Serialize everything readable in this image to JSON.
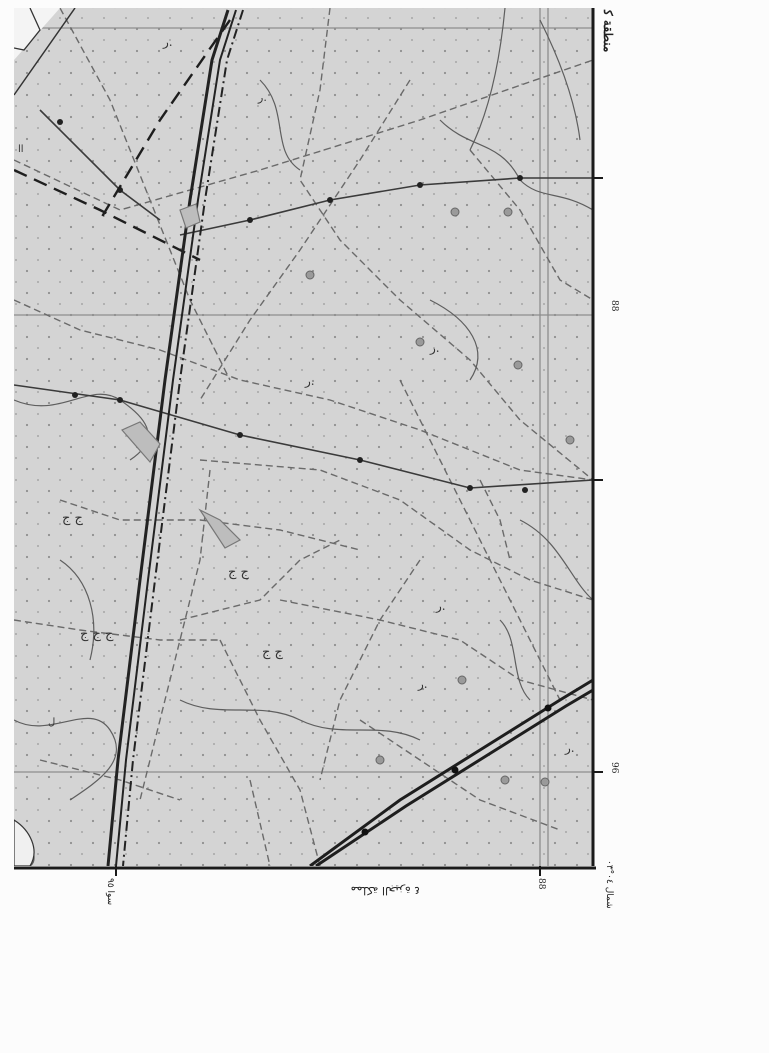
{
  "map": {
    "top_right_label": "ﻣﻨﻄﻘﺔ ﻛ",
    "right_edge_tick_1": "88",
    "right_edge_tick_2": "96",
    "bottom_caption": "ﻣﻤﻠﻜﺔ ﺍﻟﺠﻴﺰﺓ ٤",
    "bottom_left_label": "ﺳﻮﺍ ٩٥",
    "bottom_mid_label": "88",
    "bottom_right_label": "ﺷﻤﺎﻝ ٠٤°٠٣",
    "parcel_labels": [
      "ﺭ.",
      "ﺭ.",
      "ﺭ.",
      "ﺭ.",
      "ﺭ.",
      "ﺭ.",
      "ﺭ."
    ],
    "field_symbols": [
      "ﺝ ﺝ",
      "ﺝ ﺝ",
      "ﺝ ﺝ",
      "ﺝ ﺝ ﺝ"
    ],
    "small_numbers": [
      "ﺍﺍ",
      "ﻝ"
    ]
  },
  "colors": {
    "map_fill": "#d4d4d4",
    "border": "#1a1a1a",
    "road": "#2b2b2b",
    "dashed": "#5a5a5a",
    "grid": "#8a8a8a"
  }
}
